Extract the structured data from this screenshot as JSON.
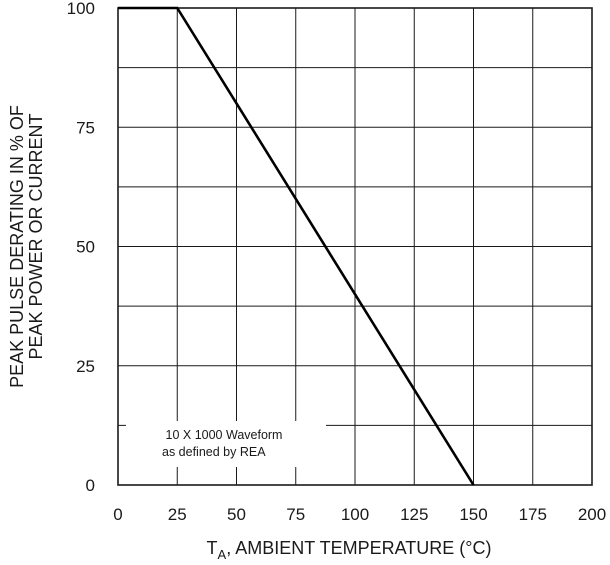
{
  "chart_data": {
    "type": "line",
    "xlabel_main": "T",
    "xlabel_sub": "A",
    "xlabel_rest": ", AMBIENT TEMPERATURE (°C)",
    "ylabel_line1": "PEAK PULSE DERATING IN % OF",
    "ylabel_line2": "PEAK POWER OR CURRENT",
    "xlim": [
      0,
      200
    ],
    "ylim": [
      0,
      100
    ],
    "xticks": [
      0,
      25,
      50,
      75,
      100,
      125,
      150,
      175,
      200
    ],
    "yticks": [
      0,
      25,
      50,
      75,
      100
    ],
    "grid": true,
    "series": [
      {
        "x": [
          0,
          25,
          150
        ],
        "y": [
          100,
          100,
          0
        ]
      }
    ],
    "annotation_line1": "10 X 1000 Waveform",
    "annotation_line2": "as defined by REA"
  }
}
